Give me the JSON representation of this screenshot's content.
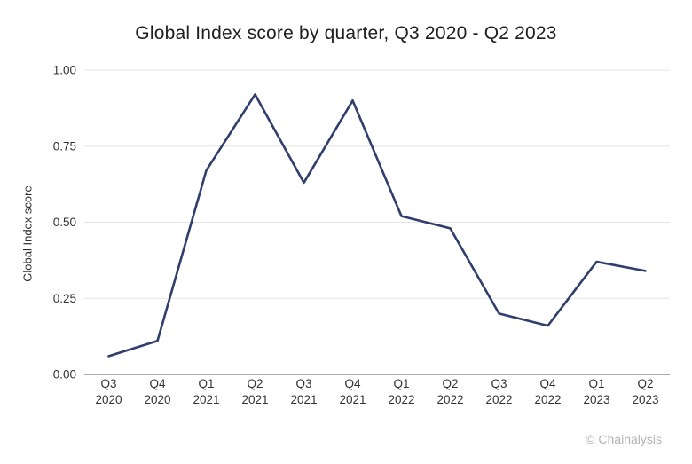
{
  "chart_data": {
    "type": "line",
    "title": "Global Index score by quarter, Q3 2020 - Q2 2023",
    "xlabel": "",
    "ylabel": "Global Index score",
    "categories": [
      "Q3 2020",
      "Q4 2020",
      "Q1 2021",
      "Q2 2021",
      "Q3 2021",
      "Q4 2021",
      "Q1 2022",
      "Q2 2022",
      "Q3 2022",
      "Q4 2022",
      "Q1 2023",
      "Q2 2023"
    ],
    "values": [
      0.06,
      0.11,
      0.67,
      0.92,
      0.63,
      0.9,
      0.52,
      0.48,
      0.2,
      0.16,
      0.37,
      0.34
    ],
    "ylim": [
      0,
      1
    ],
    "yticks": [
      0.0,
      0.25,
      0.5,
      0.75,
      1.0
    ],
    "ytick_labels": [
      "0.00",
      "0.25",
      "0.50",
      "0.75",
      "1.00"
    ],
    "grid": true,
    "legend": "none",
    "line_color": "#2f3e6d",
    "attribution": "© Chainalysis"
  }
}
